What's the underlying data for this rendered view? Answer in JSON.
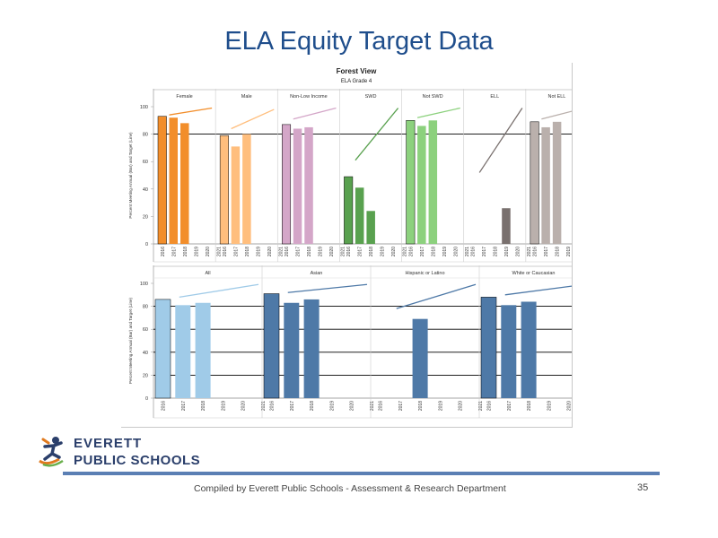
{
  "slide": {
    "title": "ELA Equity Target Data",
    "footer": "Compiled  by Everett Public Schools - Assessment & Research Department",
    "page_number": "35",
    "logo": {
      "line1": "EVERETT",
      "line2": "PUBLIC SCHOOLS"
    }
  },
  "colors": {
    "title": "#1f4e8c",
    "footer_rule": "#5b7fb4"
  },
  "chart_data": [
    {
      "type": "bar",
      "title": "Forest View",
      "subtitle": "ELA Grade 4",
      "ylabel": "Percent Meeting Annual (Bar) and Target (Line)",
      "ylim": [
        0,
        100
      ],
      "yticks": [
        0,
        20,
        40,
        60,
        80,
        100
      ],
      "reference_line": 80,
      "categories": [
        "2016",
        "2017",
        "2018",
        "2019",
        "2020",
        "2021"
      ],
      "groups": [
        {
          "name": "Female",
          "values": [
            93,
            92,
            88,
            null,
            null,
            null
          ],
          "colors": [
            "#f28e2b",
            "#f28e2b",
            "#f28e2b"
          ],
          "target": [
            94,
            99
          ]
        },
        {
          "name": "Male",
          "values": [
            79,
            71,
            80,
            null,
            null,
            null
          ],
          "colors": [
            "#ffbe7d",
            "#ffbe7d",
            "#ffbe7d"
          ],
          "target": [
            84,
            98
          ]
        },
        {
          "name": "Non-Low Income",
          "values": [
            87,
            84,
            85,
            null,
            null,
            null
          ],
          "colors": [
            "#d4a6c8",
            "#d4a6c8",
            "#d4a6c8"
          ],
          "target": [
            91,
            99
          ]
        },
        {
          "name": "SWD",
          "values": [
            49,
            41,
            24,
            null,
            null,
            null
          ],
          "colors": [
            "#59a14f",
            "#59a14f",
            "#59a14f"
          ],
          "target": [
            61,
            99
          ]
        },
        {
          "name": "Not SWD",
          "values": [
            90,
            86,
            90,
            null,
            null,
            null
          ],
          "colors": [
            "#8cd17d",
            "#8cd17d",
            "#8cd17d"
          ],
          "target": [
            92,
            99
          ]
        },
        {
          "name": "ELL",
          "values": [
            null,
            null,
            null,
            26,
            null,
            null
          ],
          "colors": [
            "#79706e",
            "#79706e",
            "#79706e",
            "#79706e"
          ],
          "target": [
            52,
            99
          ]
        },
        {
          "name": "Not ELL",
          "values": [
            89,
            85,
            89,
            null,
            null,
            null
          ],
          "colors": [
            "#bab0ac",
            "#bab0ac",
            "#bab0ac"
          ],
          "target": [
            91,
            99
          ]
        }
      ]
    },
    {
      "type": "bar",
      "ylabel": "Percent Meeting Annual (Bar) and Target (Line)",
      "ylim": [
        0,
        100
      ],
      "yticks": [
        0,
        20,
        40,
        60,
        80,
        100
      ],
      "reference_lines": [
        20,
        40,
        60,
        80
      ],
      "categories": [
        "2016",
        "2017",
        "2018",
        "2019",
        "2020",
        "2021"
      ],
      "groups": [
        {
          "name": "All",
          "values": [
            86,
            81,
            83,
            null,
            null,
            null
          ],
          "colors": [
            "#a0cbe8",
            "#a0cbe8",
            "#a0cbe8"
          ],
          "target": [
            88,
            99
          ]
        },
        {
          "name": "Asian",
          "values": [
            91,
            83,
            86,
            null,
            null,
            null
          ],
          "colors": [
            "#4e79a7",
            "#4e79a7",
            "#4e79a7"
          ],
          "target": [
            92,
            99
          ]
        },
        {
          "name": "Hispanic or Latino",
          "values": [
            null,
            null,
            69,
            null,
            null,
            null
          ],
          "colors": [
            "#4e79a7",
            "#4e79a7",
            "#4e79a7"
          ],
          "target": [
            78,
            99
          ]
        },
        {
          "name": "White or Caucasian",
          "values": [
            88,
            81,
            84,
            null,
            null,
            null
          ],
          "colors": [
            "#4e79a7",
            "#4e79a7",
            "#4e79a7"
          ],
          "target": [
            90,
            99
          ]
        }
      ]
    }
  ]
}
